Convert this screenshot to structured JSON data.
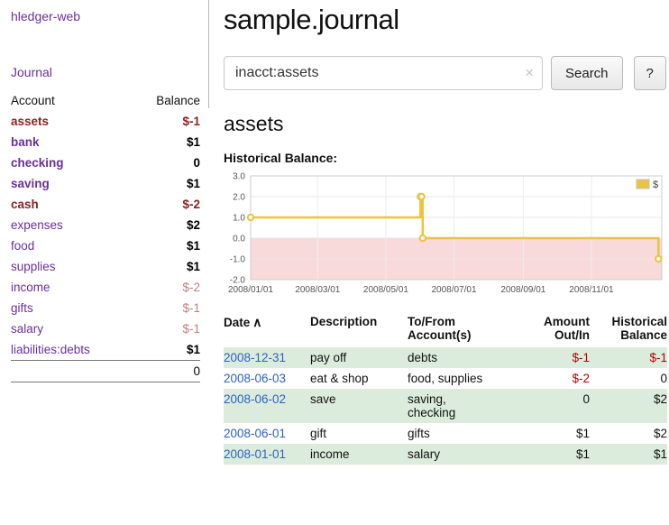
{
  "colors": {
    "purple_link": "#6a2f9f",
    "blue_link": "#2a62c9",
    "strong_negative": "#8c2323",
    "muted_negative": "#c08080",
    "table_negative": "#b30000",
    "stripe_green": "#dcecdc"
  },
  "sidebar": {
    "app_link": "hledger-web",
    "journal_link": "Journal",
    "accounts": {
      "header_account": "Account",
      "header_balance": "Balance",
      "rows": [
        {
          "name": "assets",
          "balance": "$-1"
        },
        {
          "name": "bank",
          "balance": "$1"
        },
        {
          "name": "checking",
          "balance": "0"
        },
        {
          "name": "saving",
          "balance": "$1"
        },
        {
          "name": "cash",
          "balance": "$-2"
        },
        {
          "name": "expenses",
          "balance": "$2"
        },
        {
          "name": "food",
          "balance": "$1"
        },
        {
          "name": "supplies",
          "balance": "$1"
        },
        {
          "name": "income",
          "balance": "$-2"
        },
        {
          "name": "gifts",
          "balance": "$-1"
        },
        {
          "name": "salary",
          "balance": "$-1"
        },
        {
          "name": "liabilities:debts",
          "balance": "$1"
        }
      ],
      "total": "0"
    }
  },
  "main": {
    "title": "sample.journal",
    "search": {
      "value": "inacct:assets",
      "clear_icon": "×",
      "search_button": "Search",
      "help_button": "?"
    },
    "account_heading": "assets",
    "section_label": "Historical Balance:",
    "register": {
      "sort_icon": "∧",
      "headers": {
        "date": "Date",
        "description": "Description",
        "accounts": "To/From\nAccount(s)",
        "amount": "Amount\nOut/In",
        "balance": "Historical\nBalance"
      },
      "rows": [
        {
          "date": "2008-12-31",
          "description": "pay off",
          "accounts": "debts",
          "amount": "$-1",
          "amount_negative": true,
          "balance": "$-1",
          "balance_negative": true
        },
        {
          "date": "2008-06-03",
          "description": "eat & shop",
          "accounts": "food, supplies",
          "amount": "$-2",
          "amount_negative": true,
          "balance": "0",
          "balance_negative": false
        },
        {
          "date": "2008-06-02",
          "description": "save",
          "accounts": "saving,\nchecking",
          "amount": "0",
          "amount_negative": false,
          "balance": "$2",
          "balance_negative": false
        },
        {
          "date": "2008-06-01",
          "description": "gift",
          "accounts": "gifts",
          "amount": "$1",
          "amount_negative": false,
          "balance": "$2",
          "balance_negative": false
        },
        {
          "date": "2008-01-01",
          "description": "income",
          "accounts": "salary",
          "amount": "$1",
          "amount_negative": false,
          "balance": "$1",
          "balance_negative": false
        }
      ]
    }
  },
  "chart_data": {
    "type": "line",
    "title": "Historical Balance",
    "step": true,
    "line_color": "#edc240",
    "negative_region_color": "#f9dada",
    "legend": [
      {
        "label": "$",
        "color": "#edc240"
      }
    ],
    "series": [
      {
        "name": "$",
        "points": [
          {
            "date": "2008-01-01",
            "day": 0,
            "value": 1.0
          },
          {
            "date": "2008-06-01",
            "day": 152,
            "value": 2.0
          },
          {
            "date": "2008-06-02",
            "day": 153,
            "value": 2.0
          },
          {
            "date": "2008-06-03",
            "day": 154,
            "value": 0.0
          },
          {
            "date": "2008-12-31",
            "day": 365,
            "value": -1.0
          }
        ]
      }
    ],
    "x_ticks": [
      {
        "label": "2008/01/01",
        "day": 0
      },
      {
        "label": "2008/03/01",
        "day": 60
      },
      {
        "label": "2008/05/01",
        "day": 121
      },
      {
        "label": "2008/07/01",
        "day": 182
      },
      {
        "label": "2008/09/01",
        "day": 244
      },
      {
        "label": "2008/11/01",
        "day": 305
      }
    ],
    "y_ticks": [
      3.0,
      2.0,
      1.0,
      0.0,
      -1.0,
      -2.0
    ],
    "ylim": [
      -2.0,
      3.0
    ],
    "xlim_days": [
      0,
      368
    ]
  }
}
